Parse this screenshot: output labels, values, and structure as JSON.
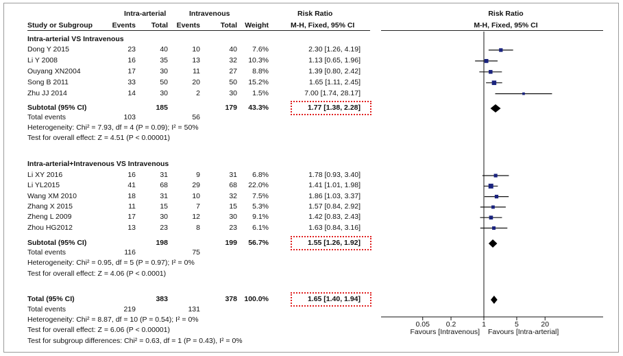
{
  "header": {
    "group1": "Intra-arterial",
    "group2": "Intravenous",
    "rr_title": "Risk Ratio",
    "plot_title": "Risk Ratio",
    "col_study": "Study or Subgroup",
    "col_events": "Events",
    "col_total": "Total",
    "col_events2": "Events",
    "col_total2": "Total",
    "col_weight": "Weight",
    "col_method": "M-H, Fixed, 95% CI",
    "plot_method": "M-H, Fixed, 95% CI"
  },
  "subgroups": [
    {
      "title": "Intra-arterial VS Intravenous",
      "studies": [
        {
          "name": "Dong Y 2015",
          "e1": "23",
          "n1": "40",
          "e2": "10",
          "n2": "40",
          "weight": "7.6%",
          "ci_text": "2.30 [1.26, 4.19]",
          "rr": 2.3,
          "lo": 1.26,
          "hi": 4.19,
          "w": 7.6
        },
        {
          "name": "Li Y 2008",
          "e1": "16",
          "n1": "35",
          "e2": "13",
          "n2": "32",
          "weight": "10.3%",
          "ci_text": "1.13 [0.65, 1.96]",
          "rr": 1.13,
          "lo": 0.65,
          "hi": 1.96,
          "w": 10.3
        },
        {
          "name": "Ouyang XN2004",
          "e1": "17",
          "n1": "30",
          "e2": "11",
          "n2": "27",
          "weight": "8.8%",
          "ci_text": "1.39 [0.80, 2.42]",
          "rr": 1.39,
          "lo": 0.8,
          "hi": 2.42,
          "w": 8.8
        },
        {
          "name": "Song B 2011",
          "e1": "33",
          "n1": "50",
          "e2": "20",
          "n2": "50",
          "weight": "15.2%",
          "ci_text": "1.65 [1.11, 2.45]",
          "rr": 1.65,
          "lo": 1.11,
          "hi": 2.45,
          "w": 15.2
        },
        {
          "name": "Zhu JJ 2014",
          "e1": "14",
          "n1": "30",
          "e2": "2",
          "n2": "30",
          "weight": "1.5%",
          "ci_text": "7.00 [1.74, 28.17]",
          "rr": 7.0,
          "lo": 1.74,
          "hi": 28.17,
          "w": 1.5
        }
      ],
      "subtotal": {
        "label": "Subtotal (95% CI)",
        "n1": "185",
        "n2": "179",
        "weight": "43.3%",
        "ci_text": "1.77 [1.38, 2.28]",
        "rr": 1.77,
        "lo": 1.38,
        "hi": 2.28
      },
      "total_events": {
        "label": "Total events",
        "e1": "103",
        "e2": "56"
      },
      "heterogeneity": "Heterogeneity: Chi² = 7.93, df = 4 (P = 0.09); I² = 50%",
      "overall": "Test for overall effect: Z = 4.51 (P < 0.00001)"
    },
    {
      "title": "Intra-arterial+Intravenous VS Intravenous",
      "studies": [
        {
          "name": "Li XY 2016",
          "e1": "16",
          "n1": "31",
          "e2": "9",
          "n2": "31",
          "weight": "6.8%",
          "ci_text": "1.78 [0.93, 3.40]",
          "rr": 1.78,
          "lo": 0.93,
          "hi": 3.4,
          "w": 6.8
        },
        {
          "name": "Li YL2015",
          "e1": "41",
          "n1": "68",
          "e2": "29",
          "n2": "68",
          "weight": "22.0%",
          "ci_text": "1.41 [1.01, 1.98]",
          "rr": 1.41,
          "lo": 1.01,
          "hi": 1.98,
          "w": 22.0
        },
        {
          "name": "Wang XM 2010",
          "e1": "18",
          "n1": "31",
          "e2": "10",
          "n2": "32",
          "weight": "7.5%",
          "ci_text": "1.86 [1.03, 3.37]",
          "rr": 1.86,
          "lo": 1.03,
          "hi": 3.37,
          "w": 7.5
        },
        {
          "name": "Zhang X 2015",
          "e1": "11",
          "n1": "15",
          "e2": "7",
          "n2": "15",
          "weight": "5.3%",
          "ci_text": "1.57 [0.84, 2.92]",
          "rr": 1.57,
          "lo": 0.84,
          "hi": 2.92,
          "w": 5.3
        },
        {
          "name": "Zheng L 2009",
          "e1": "17",
          "n1": "30",
          "e2": "12",
          "n2": "30",
          "weight": "9.1%",
          "ci_text": "1.42 [0.83, 2.43]",
          "rr": 1.42,
          "lo": 0.83,
          "hi": 2.43,
          "w": 9.1
        },
        {
          "name": "Zhou HG2012",
          "e1": "13",
          "n1": "23",
          "e2": "8",
          "n2": "23",
          "weight": "6.1%",
          "ci_text": "1.63 [0.84, 3.16]",
          "rr": 1.63,
          "lo": 0.84,
          "hi": 3.16,
          "w": 6.1
        }
      ],
      "subtotal": {
        "label": "Subtotal (95% CI)",
        "n1": "198",
        "n2": "199",
        "weight": "56.7%",
        "ci_text": "1.55 [1.26, 1.92]",
        "rr": 1.55,
        "lo": 1.26,
        "hi": 1.92
      },
      "total_events": {
        "label": "Total events",
        "e1": "116",
        "e2": "75"
      },
      "heterogeneity": "Heterogeneity: Chi² = 0.95, df = 5 (P = 0.97); I² = 0%",
      "overall": "Test for overall effect: Z = 4.06 (P < 0.0001)"
    }
  ],
  "total": {
    "label": "Total (95% CI)",
    "n1": "383",
    "n2": "378",
    "weight": "100.0%",
    "ci_text": "1.65 [1.40, 1.94]",
    "rr": 1.65,
    "lo": 1.4,
    "hi": 1.94,
    "events_label": "Total events",
    "e1": "219",
    "e2": "131",
    "heterogeneity": "Heterogeneity: Chi² = 8.87, df = 10 (P = 0.54); I² = 0%",
    "overall": "Test for overall effect: Z = 6.06 (P < 0.00001)",
    "subgroup_diff": "Test for subgroup differences: Chi² = 0.63, df = 1 (P = 0.43), I² = 0%"
  },
  "axis": {
    "ticks": [
      0.05,
      0.2,
      1,
      5,
      20
    ],
    "tick_labels": [
      "0.05",
      "0.2",
      "1",
      "5",
      "20"
    ],
    "favours_left": "Favours [Intravenous]",
    "favours_right": "Favours [Intra-arterial]"
  },
  "colors": {
    "highlight": "#e02020",
    "ink": "#111111"
  },
  "chart_data": {
    "type": "scatter",
    "scale": "log",
    "xlim": [
      0.05,
      20
    ],
    "reference_line": 1,
    "x": [
      2.3,
      1.13,
      1.39,
      1.65,
      7.0,
      1.77,
      1.78,
      1.41,
      1.86,
      1.57,
      1.42,
      1.63,
      1.55,
      1.65
    ],
    "ci_low": [
      1.26,
      0.65,
      0.8,
      1.11,
      1.74,
      1.38,
      0.93,
      1.01,
      1.03,
      0.84,
      0.83,
      0.84,
      1.26,
      1.4
    ],
    "ci_high": [
      4.19,
      1.96,
      2.42,
      2.45,
      28.17,
      2.28,
      3.4,
      1.98,
      3.37,
      2.92,
      2.43,
      3.16,
      1.92,
      1.94
    ]
  }
}
